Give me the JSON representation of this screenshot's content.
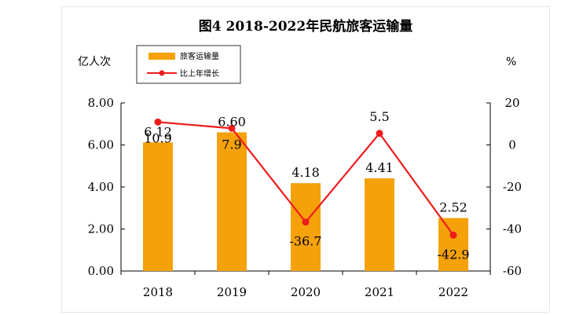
{
  "chart_data": {
    "type": "bar+line",
    "title": "图4  2018-2022年民航旅客运输量",
    "categories": [
      "2018",
      "2019",
      "2020",
      "2021",
      "2022"
    ],
    "series": [
      {
        "name": "旅客运输量",
        "type": "bar",
        "axis": "left",
        "values": [
          6.12,
          6.6,
          4.18,
          4.41,
          2.52
        ],
        "labels": [
          "6.12",
          "6.60",
          "4.18",
          "4.41",
          "2.52"
        ]
      },
      {
        "name": "比上年增长",
        "type": "line",
        "axis": "right",
        "values": [
          10.9,
          7.9,
          -36.7,
          5.5,
          -42.9
        ],
        "labels": [
          "10.9",
          "7.9",
          "-36.7",
          "5.5",
          "-42.9"
        ]
      }
    ],
    "left_axis": {
      "label": "亿人次",
      "ylim": [
        0,
        8
      ],
      "ticks": [
        "0.00",
        "2.00",
        "4.00",
        "6.00",
        "8.00"
      ]
    },
    "right_axis": {
      "label": "%",
      "ylim": [
        -60,
        20
      ],
      "ticks": [
        "-60",
        "-40",
        "-20",
        "0",
        "20"
      ]
    },
    "legend_position": "top-left",
    "grid": false,
    "colors": {
      "bar": "#f5a10a",
      "line": "#ee1c1c"
    }
  }
}
